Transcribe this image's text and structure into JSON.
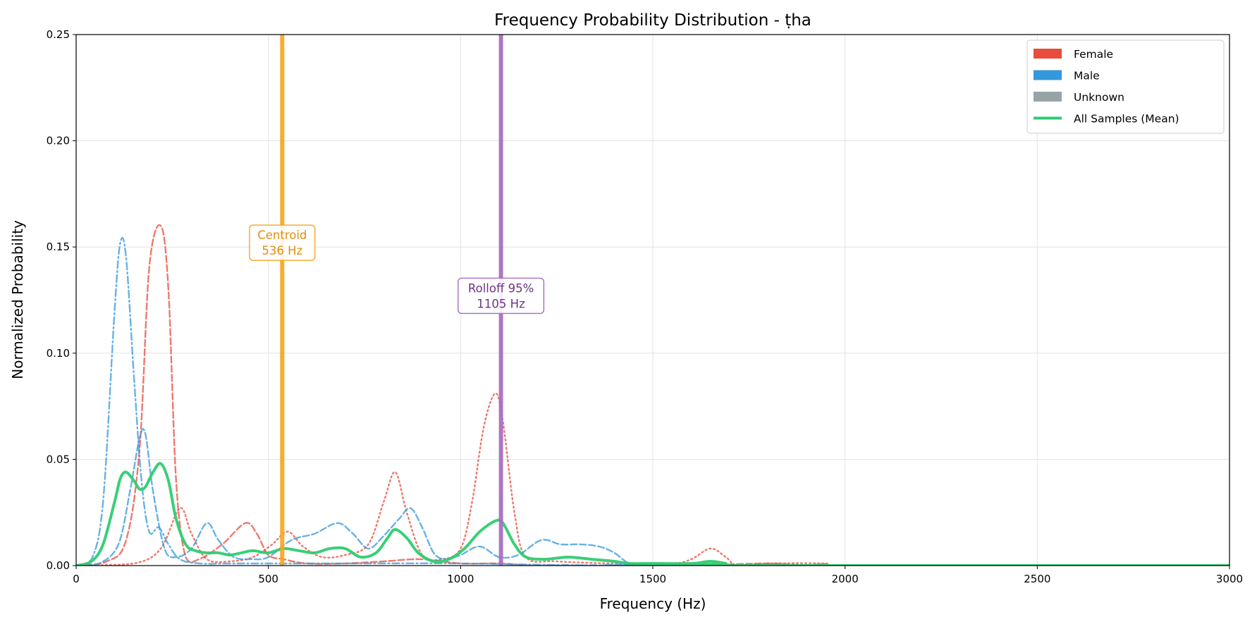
{
  "chart_data": {
    "type": "line",
    "title": "Frequency Probability Distribution - ṭha",
    "xlabel": "Frequency (Hz)",
    "ylabel": "Normalized Probability",
    "xlim": [
      0,
      3000
    ],
    "ylim": [
      0,
      0.25
    ],
    "xticks": [
      0,
      500,
      1000,
      1500,
      2000,
      2500,
      3000
    ],
    "xtick_labels": [
      "0",
      "500",
      "1000",
      "1500",
      "2000",
      "2500",
      "3000"
    ],
    "yticks": [
      0,
      0.05,
      0.1,
      0.15,
      0.2,
      0.25
    ],
    "ytick_labels": [
      "0.00",
      "0.05",
      "0.10",
      "0.15",
      "0.20",
      "0.25"
    ],
    "grid": true,
    "legend_position": "top-right",
    "legend": [
      {
        "label": "Female",
        "kind": "patch",
        "color": "#e74c3c"
      },
      {
        "label": "Male",
        "kind": "patch",
        "color": "#3498db"
      },
      {
        "label": "Unknown",
        "kind": "patch",
        "color": "#95a5a6"
      },
      {
        "label": "All Samples (Mean)",
        "kind": "line",
        "color": "#2ecc71"
      }
    ],
    "series": [
      {
        "group": "Female",
        "color": "#e74c3c",
        "style": "dashed",
        "points": [
          [
            0,
            0
          ],
          [
            80,
            0.002
          ],
          [
            130,
            0.012
          ],
          [
            165,
            0.055
          ],
          [
            190,
            0.14
          ],
          [
            220,
            0.16
          ],
          [
            240,
            0.13
          ],
          [
            260,
            0.04
          ],
          [
            285,
            0.004
          ],
          [
            320,
            0.003
          ],
          [
            380,
            0.01
          ],
          [
            440,
            0.02
          ],
          [
            470,
            0.015
          ],
          [
            500,
            0.005
          ],
          [
            540,
            0.003
          ],
          [
            600,
            0.001
          ],
          [
            700,
            0.001
          ],
          [
            800,
            0.002
          ],
          [
            900,
            0.003
          ],
          [
            1000,
            0.001
          ],
          [
            1100,
            0.001
          ],
          [
            1200,
            0
          ],
          [
            1400,
            0
          ],
          [
            1600,
            0
          ],
          [
            1800,
            0.001
          ],
          [
            2000,
            0
          ],
          [
            3000,
            0
          ]
        ]
      },
      {
        "group": "Female",
        "color": "#e74c3c",
        "style": "dotted",
        "points": [
          [
            0,
            0
          ],
          [
            150,
            0.001
          ],
          [
            220,
            0.008
          ],
          [
            270,
            0.027
          ],
          [
            300,
            0.015
          ],
          [
            340,
            0.003
          ],
          [
            400,
            0.002
          ],
          [
            460,
            0.004
          ],
          [
            510,
            0.01
          ],
          [
            550,
            0.016
          ],
          [
            590,
            0.009
          ],
          [
            640,
            0.004
          ],
          [
            700,
            0.005
          ],
          [
            760,
            0.01
          ],
          [
            800,
            0.03
          ],
          [
            830,
            0.044
          ],
          [
            860,
            0.025
          ],
          [
            900,
            0.005
          ],
          [
            950,
            0.003
          ],
          [
            1000,
            0.008
          ],
          [
            1030,
            0.03
          ],
          [
            1060,
            0.065
          ],
          [
            1090,
            0.081
          ],
          [
            1110,
            0.068
          ],
          [
            1140,
            0.025
          ],
          [
            1170,
            0.004
          ],
          [
            1250,
            0.002
          ],
          [
            1400,
            0.001
          ],
          [
            1550,
            0.001
          ],
          [
            1600,
            0.003
          ],
          [
            1650,
            0.008
          ],
          [
            1690,
            0.004
          ],
          [
            1720,
            0
          ],
          [
            1800,
            0.001
          ],
          [
            1950,
            0.001
          ],
          [
            2000,
            0
          ],
          [
            3000,
            0
          ]
        ]
      },
      {
        "group": "Male",
        "color": "#3498db",
        "style": "dashdot",
        "points": [
          [
            0,
            0
          ],
          [
            40,
            0.003
          ],
          [
            70,
            0.03
          ],
          [
            100,
            0.12
          ],
          [
            115,
            0.152
          ],
          [
            130,
            0.145
          ],
          [
            150,
            0.09
          ],
          [
            170,
            0.04
          ],
          [
            190,
            0.016
          ],
          [
            215,
            0.018
          ],
          [
            240,
            0.01
          ],
          [
            270,
            0.003
          ],
          [
            320,
            0.001
          ],
          [
            400,
            0.001
          ],
          [
            500,
            0.001
          ],
          [
            700,
            0.001
          ],
          [
            1000,
            0.001
          ],
          [
            1500,
            0
          ],
          [
            3000,
            0
          ]
        ]
      },
      {
        "group": "Male",
        "color": "#3498db",
        "style": "dashed",
        "points": [
          [
            0,
            0
          ],
          [
            60,
            0.001
          ],
          [
            110,
            0.01
          ],
          [
            140,
            0.035
          ],
          [
            165,
            0.06
          ],
          [
            180,
            0.062
          ],
          [
            200,
            0.035
          ],
          [
            230,
            0.008
          ],
          [
            260,
            0.004
          ],
          [
            300,
            0.008
          ],
          [
            340,
            0.02
          ],
          [
            370,
            0.012
          ],
          [
            410,
            0.004
          ],
          [
            460,
            0.003
          ],
          [
            500,
            0.004
          ],
          [
            560,
            0.012
          ],
          [
            620,
            0.015
          ],
          [
            680,
            0.02
          ],
          [
            720,
            0.015
          ],
          [
            760,
            0.008
          ],
          [
            800,
            0.014
          ],
          [
            840,
            0.022
          ],
          [
            870,
            0.027
          ],
          [
            900,
            0.018
          ],
          [
            930,
            0.006
          ],
          [
            960,
            0.003
          ],
          [
            1000,
            0.005
          ],
          [
            1050,
            0.009
          ],
          [
            1100,
            0.004
          ],
          [
            1150,
            0.005
          ],
          [
            1210,
            0.012
          ],
          [
            1260,
            0.01
          ],
          [
            1310,
            0.01
          ],
          [
            1360,
            0.009
          ],
          [
            1400,
            0.006
          ],
          [
            1440,
            0.001
          ],
          [
            1500,
            0
          ],
          [
            3000,
            0
          ]
        ]
      },
      {
        "group": "All Samples (Mean)",
        "color": "#2ecc71",
        "style": "solid",
        "points": [
          [
            0,
            0
          ],
          [
            40,
            0.002
          ],
          [
            70,
            0.01
          ],
          [
            100,
            0.03
          ],
          [
            115,
            0.041
          ],
          [
            130,
            0.044
          ],
          [
            150,
            0.04
          ],
          [
            165,
            0.036
          ],
          [
            180,
            0.037
          ],
          [
            200,
            0.044
          ],
          [
            220,
            0.048
          ],
          [
            240,
            0.04
          ],
          [
            260,
            0.022
          ],
          [
            285,
            0.01
          ],
          [
            310,
            0.007
          ],
          [
            340,
            0.006
          ],
          [
            370,
            0.006
          ],
          [
            400,
            0.005
          ],
          [
            430,
            0.006
          ],
          [
            460,
            0.007
          ],
          [
            500,
            0.006
          ],
          [
            540,
            0.008
          ],
          [
            580,
            0.007
          ],
          [
            620,
            0.006
          ],
          [
            660,
            0.008
          ],
          [
            700,
            0.008
          ],
          [
            740,
            0.004
          ],
          [
            780,
            0.006
          ],
          [
            810,
            0.013
          ],
          [
            830,
            0.017
          ],
          [
            860,
            0.013
          ],
          [
            890,
            0.006
          ],
          [
            930,
            0.002
          ],
          [
            970,
            0.003
          ],
          [
            1010,
            0.008
          ],
          [
            1050,
            0.016
          ],
          [
            1090,
            0.021
          ],
          [
            1110,
            0.02
          ],
          [
            1140,
            0.01
          ],
          [
            1170,
            0.004
          ],
          [
            1220,
            0.003
          ],
          [
            1280,
            0.004
          ],
          [
            1340,
            0.003
          ],
          [
            1400,
            0.002
          ],
          [
            1440,
            0.001
          ],
          [
            1500,
            0.001
          ],
          [
            1600,
            0.001
          ],
          [
            1650,
            0.002
          ],
          [
            1690,
            0.001
          ],
          [
            1720,
            0
          ],
          [
            3000,
            0
          ]
        ]
      }
    ],
    "vlines": [
      {
        "name": "centroid",
        "x": 536,
        "color": "#f5a623",
        "label_lines": [
          "Centroid",
          "536 Hz"
        ],
        "text_color": "#e08e0b",
        "label_y": 0.152
      },
      {
        "name": "rolloff",
        "x": 1105,
        "color": "#a66bbf",
        "label_lines": [
          "Rolloff 95%",
          "1105 Hz"
        ],
        "text_color": "#6c3483",
        "label_y": 0.127
      }
    ]
  }
}
